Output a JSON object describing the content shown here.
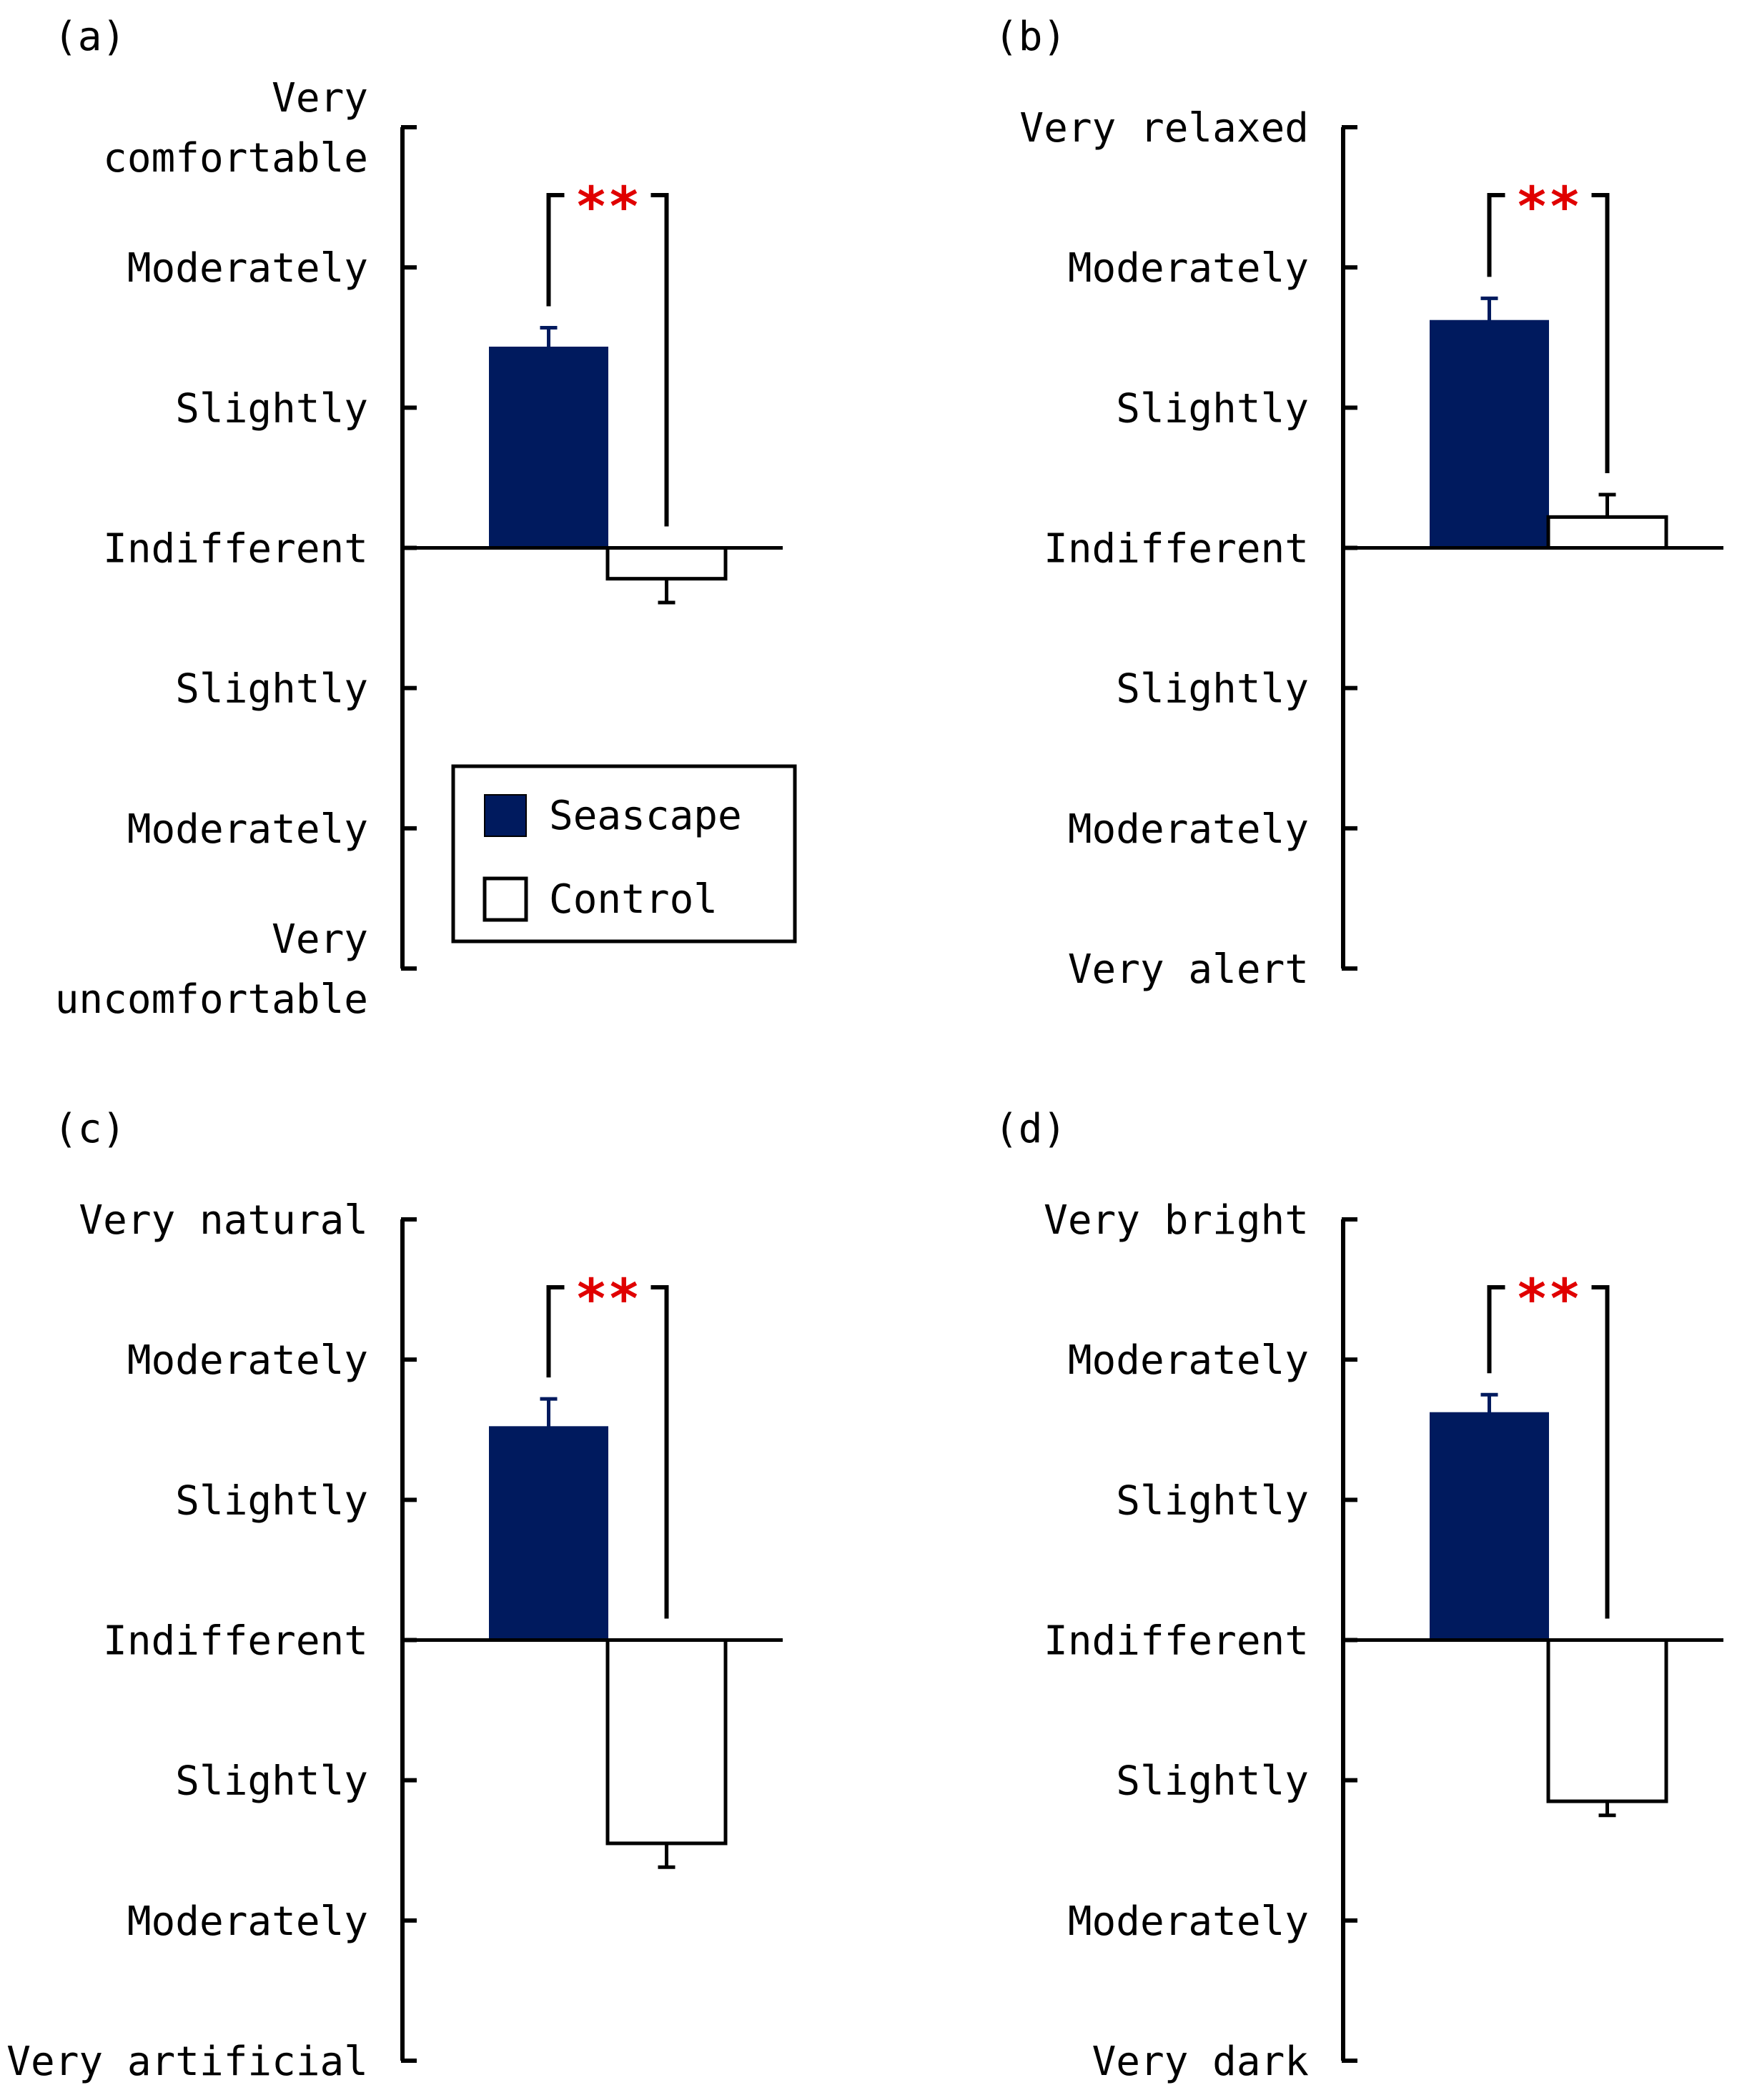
{
  "legend": {
    "entries": [
      {
        "label": "Seascape",
        "color": "#001a5e"
      },
      {
        "label": "Control",
        "color": "#ffffff"
      }
    ]
  },
  "colors": {
    "seascape": "#001a5e",
    "control": "#ffffff",
    "significance": "#e00000",
    "axis": "#000000"
  },
  "chart_data": [
    {
      "type": "bar",
      "panel": "(a)",
      "tick_labels": [
        "Very\ncomfortable",
        "Moderately",
        "Slightly",
        "Indifferent",
        "Slightly",
        "Moderately",
        "Very\nuncomfortable"
      ],
      "ylim": [
        -3,
        3
      ],
      "series": [
        {
          "name": "Seascape",
          "value": 1.43,
          "error": 0.14
        },
        {
          "name": "Control",
          "value": -0.22,
          "error": 0.17
        }
      ],
      "significance": "**"
    },
    {
      "type": "bar",
      "panel": "(b)",
      "tick_labels": [
        "Very relaxed",
        "Moderately",
        "Slightly",
        "Indifferent",
        "Slightly",
        "Moderately",
        "Very alert"
      ],
      "ylim": [
        -3,
        3
      ],
      "series": [
        {
          "name": "Seascape",
          "value": 1.62,
          "error": 0.16
        },
        {
          "name": "Control",
          "value": 0.22,
          "error": 0.16
        }
      ],
      "significance": "**"
    },
    {
      "type": "bar",
      "panel": "(c)",
      "tick_labels": [
        "Very natural",
        "Moderately",
        "Slightly",
        "Indifferent",
        "Slightly",
        "Moderately",
        "Very artificial"
      ],
      "ylim": [
        -3,
        3
      ],
      "series": [
        {
          "name": "Seascape",
          "value": 1.52,
          "error": 0.2
        },
        {
          "name": "Control",
          "value": -1.45,
          "error": 0.17
        }
      ],
      "significance": "**"
    },
    {
      "type": "bar",
      "panel": "(d)",
      "tick_labels": [
        "Very bright",
        "Moderately",
        "Slightly",
        "Indifferent",
        "Slightly",
        "Moderately",
        "Very dark"
      ],
      "ylim": [
        -3,
        3
      ],
      "series": [
        {
          "name": "Seascape",
          "value": 1.62,
          "error": 0.13
        },
        {
          "name": "Control",
          "value": -1.15,
          "error": 0.1
        }
      ],
      "significance": "**"
    }
  ]
}
